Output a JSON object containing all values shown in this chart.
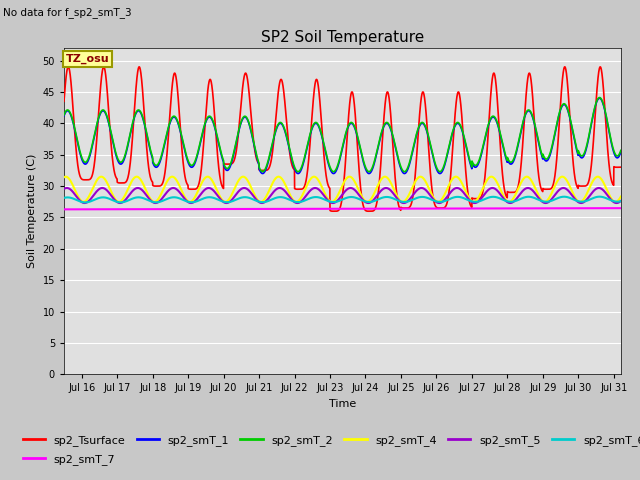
{
  "title": "SP2 Soil Temperature",
  "no_data_text": "No data for f_sp2_smT_3",
  "tz_label": "TZ_osu",
  "ylabel": "Soil Temperature (C)",
  "xlabel": "Time",
  "ylim": [
    0,
    52
  ],
  "yticks": [
    0,
    5,
    10,
    15,
    20,
    25,
    30,
    35,
    40,
    45,
    50
  ],
  "start_day": 15.5,
  "end_day": 31.2,
  "xtick_labels": [
    "Jul 16",
    "Jul 17",
    "Jul 18",
    "Jul 19",
    "Jul 20",
    "Jul 21",
    "Jul 22",
    "Jul 23",
    "Jul 24",
    "Jul 25",
    "Jul 26",
    "Jul 27",
    "Jul 28",
    "Jul 29",
    "Jul 30",
    "Jul 31"
  ],
  "xtick_positions": [
    16,
    17,
    18,
    19,
    20,
    21,
    22,
    23,
    24,
    25,
    26,
    27,
    28,
    29,
    30,
    31
  ],
  "series": {
    "sp2_Tsurface": {
      "color": "#FF0000",
      "linewidth": 1.2
    },
    "sp2_smT_1": {
      "color": "#0000FF",
      "linewidth": 1.2
    },
    "sp2_smT_2": {
      "color": "#00CC00",
      "linewidth": 1.2
    },
    "sp2_smT_4": {
      "color": "#FFFF00",
      "linewidth": 1.5
    },
    "sp2_smT_5": {
      "color": "#9900CC",
      "linewidth": 1.5
    },
    "sp2_smT_6": {
      "color": "#00CCCC",
      "linewidth": 1.5
    },
    "sp2_smT_7": {
      "color": "#FF00FF",
      "linewidth": 1.5
    }
  },
  "background_color": "#C8C8C8",
  "plot_bg_color": "#E0E0E0",
  "grid_color": "#FFFFFF",
  "title_fontsize": 11,
  "legend_fontsize": 8,
  "tick_fontsize": 7,
  "figwidth": 6.4,
  "figheight": 4.8,
  "dpi": 100
}
